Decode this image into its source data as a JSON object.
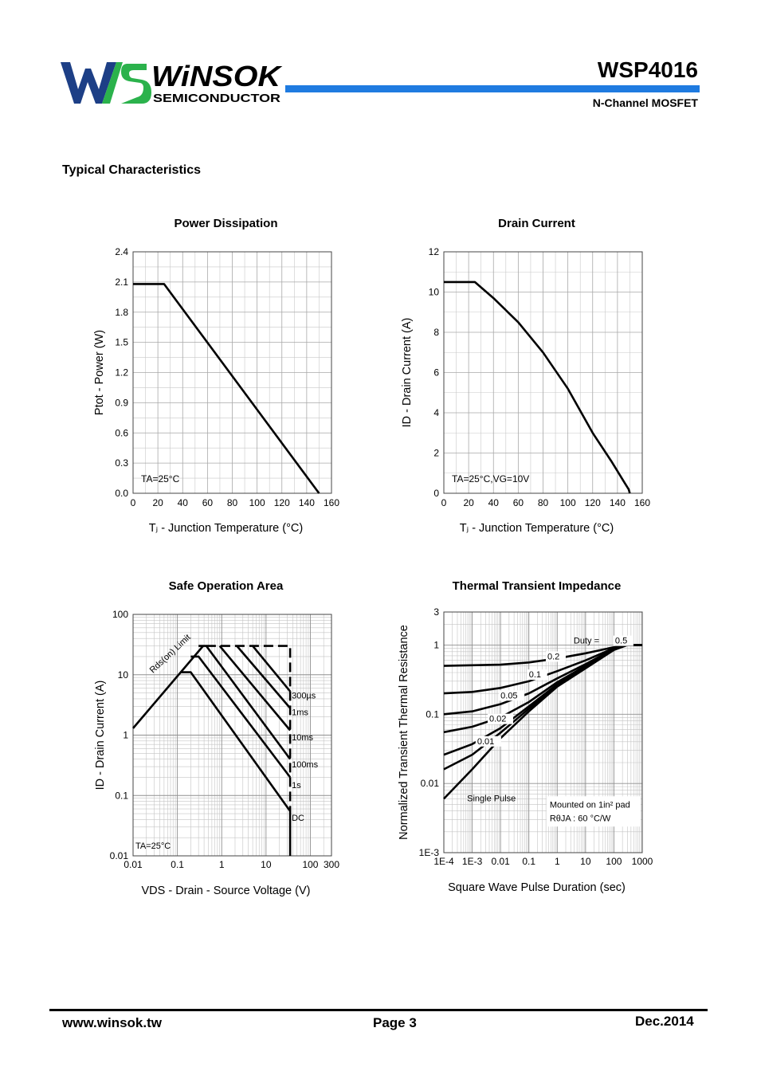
{
  "header": {
    "logo_word": "WiNSOK",
    "logo_sub": "SEMICONDUCTOR",
    "part_number": "WSP4016",
    "subtitle": "N-Channel MOSFET",
    "brand_blue": "#1f7be0",
    "brand_green": "#2bb24c",
    "logo_dark": "#1d3f86"
  },
  "section_title": "Typical Characteristics",
  "footer": {
    "url": "www.winsok.tw",
    "page": "Page  3",
    "date": "Dec.2014"
  },
  "chart_data": [
    {
      "id": "power",
      "type": "line",
      "title": "Power Dissipation",
      "xlabel": "Tⱼ - Junction Temperature (°C)",
      "ylabel": "Ptot - Power (W)",
      "xlim": [
        0,
        160
      ],
      "ylim": [
        0,
        2.4
      ],
      "xticks": [
        0,
        20,
        40,
        60,
        80,
        100,
        120,
        140,
        160
      ],
      "yticks": [
        0.0,
        0.3,
        0.6,
        0.9,
        1.2,
        1.5,
        1.8,
        2.1,
        2.4
      ],
      "ytick_labels": [
        "0.0",
        "0.3",
        "0.6",
        "0.9",
        "1.2",
        "1.5",
        "1.8",
        "2.1",
        "2.4"
      ],
      "annotation": "TA=25°C",
      "series": [
        {
          "name": "Ptot",
          "x": [
            0,
            25,
            150
          ],
          "y": [
            2.08,
            2.08,
            0
          ]
        }
      ]
    },
    {
      "id": "drain",
      "type": "line",
      "title": "Drain Current",
      "xlabel": "Tⱼ - Junction Temperature (°C)",
      "ylabel": "ID - Drain Current (A)",
      "xlim": [
        0,
        160
      ],
      "ylim": [
        0,
        12
      ],
      "xticks": [
        0,
        20,
        40,
        60,
        80,
        100,
        120,
        140,
        160
      ],
      "yticks": [
        0,
        2,
        4,
        6,
        8,
        10,
        12
      ],
      "ytick_labels": [
        "0",
        "2",
        "4",
        "6",
        "8",
        "10",
        "12"
      ],
      "annotation": "TA=25°C,VG=10V",
      "series": [
        {
          "name": "ID",
          "x": [
            0,
            25,
            40,
            60,
            80,
            100,
            120,
            135,
            142,
            146,
            149,
            150
          ],
          "y": [
            10.5,
            10.5,
            9.7,
            8.5,
            7.0,
            5.2,
            3.0,
            1.6,
            0.9,
            0.5,
            0.2,
            0
          ]
        }
      ]
    },
    {
      "id": "soa",
      "type": "line",
      "scale": "log-log",
      "title": "Safe Operation Area",
      "xlabel": "VDS - Drain - Source Voltage (V)",
      "ylabel": "ID - Drain Current (A)",
      "xlim": [
        0.01,
        300
      ],
      "ylim": [
        0.01,
        100
      ],
      "xticks": [
        0.01,
        0.1,
        1,
        10,
        100,
        300
      ],
      "xtick_labels": [
        "0.01",
        "0.1",
        "1",
        "10",
        "100",
        "300"
      ],
      "yticks": [
        0.01,
        0.1,
        1,
        10,
        100
      ],
      "ytick_labels": [
        "0.01",
        "0.1",
        "1",
        "10",
        "100"
      ],
      "annotation": "TA=25°C",
      "limit_label": "Rds(on) Limit",
      "series": [
        {
          "name": "Rds(on) Limit",
          "style": "solid",
          "x": [
            0.01,
            0.38
          ],
          "y": [
            1.3,
            30
          ]
        },
        {
          "name": "DC",
          "style": "solid",
          "x": [
            0.12,
            0.2,
            35,
            35
          ],
          "y": [
            11,
            11,
            0.055,
            0.01
          ]
        },
        {
          "name": "1s",
          "style": "solid",
          "x": [
            0.2,
            0.3,
            35
          ],
          "y": [
            20,
            20,
            0.2
          ]
        },
        {
          "name": "100ms",
          "style": "solid",
          "x": [
            0.3,
            0.45,
            35
          ],
          "y": [
            30,
            30,
            0.4
          ]
        },
        {
          "name": "10ms",
          "style": "solid",
          "x": [
            0.9,
            35
          ],
          "y": [
            30,
            1.2
          ]
        },
        {
          "name": "1ms",
          "style": "solid",
          "x": [
            2.2,
            35
          ],
          "y": [
            30,
            2.8
          ]
        },
        {
          "name": "300µs",
          "style": "solid",
          "x": [
            5,
            35
          ],
          "y": [
            30,
            5.3
          ]
        },
        {
          "name": "Pulse limit",
          "style": "dash",
          "x": [
            0.45,
            35,
            35
          ],
          "y": [
            30,
            30,
            0.055
          ]
        }
      ],
      "series_labels": [
        {
          "text": "300µs",
          "x": 38,
          "y": 4.6
        },
        {
          "text": "1ms",
          "x": 38,
          "y": 2.4
        },
        {
          "text": "10ms",
          "x": 38,
          "y": 0.92
        },
        {
          "text": "100ms",
          "x": 38,
          "y": 0.33
        },
        {
          "text": "1s",
          "x": 38,
          "y": 0.15
        },
        {
          "text": "DC",
          "x": 38,
          "y": 0.043
        }
      ]
    },
    {
      "id": "thermal",
      "type": "line",
      "scale": "log-log",
      "title": "Thermal Transient Impedance",
      "xlabel": "Square Wave Pulse Duration (sec)",
      "ylabel": "Normalized Transient Thermal Resistance",
      "xlim": [
        0.0001,
        1000
      ],
      "ylim": [
        0.001,
        3
      ],
      "xticks": [
        0.0001,
        0.001,
        0.01,
        0.1,
        1,
        10,
        100,
        1000
      ],
      "xtick_labels": [
        "1E-4",
        "1E-3",
        "0.01",
        "0.1",
        "1",
        "10",
        "100",
        "1000"
      ],
      "yticks": [
        0.001,
        0.01,
        0.1,
        1,
        3
      ],
      "ytick_labels": [
        "1E-3",
        "0.01",
        "0.1",
        "1",
        "3"
      ],
      "note_line1": "Mounted on 1in² pad",
      "note_line2": "RθJA : 60 °C/W",
      "duty_prefix": "Duty =",
      "series": [
        {
          "name": "0.5",
          "x": [
            0.0001,
            0.001,
            0.01,
            0.1,
            1,
            10,
            100,
            300,
            1000
          ],
          "y": [
            0.5,
            0.51,
            0.52,
            0.56,
            0.64,
            0.76,
            0.93,
            1.0,
            1.0
          ]
        },
        {
          "name": "0.2",
          "x": [
            0.0001,
            0.001,
            0.01,
            0.1,
            1,
            10,
            100,
            300,
            1000
          ],
          "y": [
            0.2,
            0.21,
            0.24,
            0.3,
            0.42,
            0.6,
            0.9,
            1.0,
            1.0
          ]
        },
        {
          "name": "0.1",
          "x": [
            0.0001,
            0.001,
            0.01,
            0.1,
            1,
            10,
            100,
            300,
            1000
          ],
          "y": [
            0.1,
            0.11,
            0.14,
            0.2,
            0.33,
            0.53,
            0.88,
            1.0,
            1.0
          ]
        },
        {
          "name": "0.05",
          "x": [
            0.0001,
            0.001,
            0.01,
            0.1,
            1,
            10,
            100,
            300,
            1000
          ],
          "y": [
            0.055,
            0.066,
            0.09,
            0.15,
            0.29,
            0.5,
            0.87,
            1.0,
            1.0
          ]
        },
        {
          "name": "0.02",
          "x": [
            0.0001,
            0.001,
            0.01,
            0.1,
            1,
            10,
            100,
            300,
            1000
          ],
          "y": [
            0.026,
            0.037,
            0.063,
            0.13,
            0.27,
            0.48,
            0.86,
            1.0,
            1.0
          ]
        },
        {
          "name": "0.01",
          "x": [
            0.0001,
            0.001,
            0.01,
            0.1,
            1,
            10,
            100,
            300,
            1000
          ],
          "y": [
            0.016,
            0.026,
            0.054,
            0.12,
            0.26,
            0.47,
            0.86,
            1.0,
            1.0
          ]
        },
        {
          "name": "Single Pulse",
          "x": [
            0.0001,
            0.001,
            0.01,
            0.1,
            1,
            10,
            100,
            300,
            1000
          ],
          "y": [
            0.006,
            0.016,
            0.045,
            0.11,
            0.25,
            0.46,
            0.85,
            1.0,
            1.0
          ]
        }
      ],
      "series_labels": [
        {
          "text": "0.5",
          "x": 110,
          "y": 1.05
        },
        {
          "text": "0.2",
          "x": 0.45,
          "y": 0.62
        },
        {
          "text": "0.1",
          "x": 0.1,
          "y": 0.34
        },
        {
          "text": "0.05",
          "x": 0.01,
          "y": 0.17
        },
        {
          "text": "0.02",
          "x": 0.004,
          "y": 0.078
        },
        {
          "text": "0.01",
          "x": 0.0015,
          "y": 0.037
        },
        {
          "text": "Single Pulse",
          "x": 0.00066,
          "y": 0.0055
        }
      ]
    }
  ]
}
